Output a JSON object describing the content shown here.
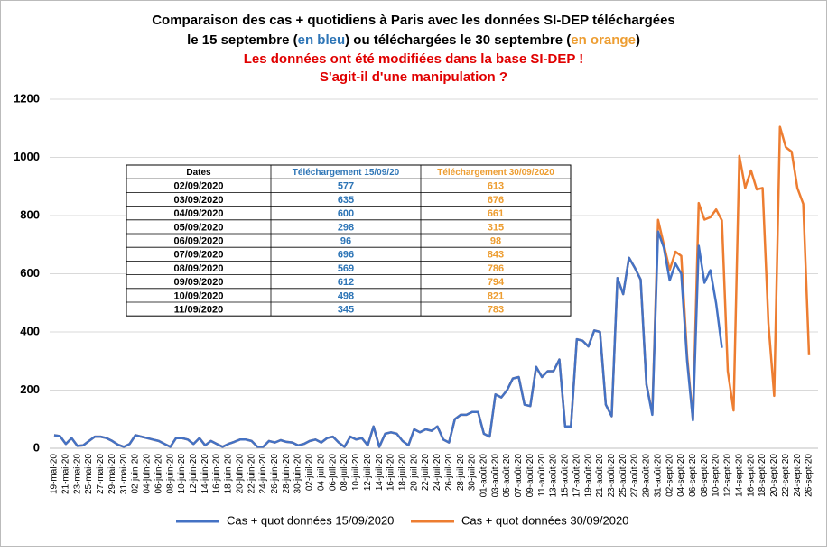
{
  "chart_data": {
    "type": "line",
    "title_lines": [
      [
        "Comparaison des cas + quotidiens à Paris avec les données SI-DEP téléchargées"
      ],
      [
        "le 15 septembre (",
        "en bleu",
        ") ou téléchargées le 30 septembre (",
        "en orange",
        ")"
      ]
    ],
    "subtitle_lines": [
      "Les données ont été modifiées dans la base SI-DEP !",
      "S'agit-il d'une manipulation ?"
    ],
    "categories": [
      "19-mai-20",
      null,
      "21-mai-20",
      null,
      "23-mai-20",
      null,
      "25-mai-20",
      null,
      "27-mai-20",
      null,
      "29-mai-20",
      null,
      "31-mai-20",
      null,
      "02-juin-20",
      null,
      "04-juin-20",
      null,
      "06-juin-20",
      null,
      "08-juin-20",
      null,
      "10-juin-20",
      null,
      "12-juin-20",
      null,
      "14-juin-20",
      null,
      "16-juin-20",
      null,
      "18-juin-20",
      null,
      "20-juin-20",
      null,
      "22-juin-20",
      null,
      "24-juin-20",
      null,
      "26-juin-20",
      null,
      "28-juin-20",
      null,
      "30-juin-20",
      null,
      "02-juil-20",
      null,
      "04-juil-20",
      null,
      "06-juil-20",
      null,
      "08-juil-20",
      null,
      "10-juil-20",
      null,
      "12-juil-20",
      null,
      "14-juil-20",
      null,
      "16-juil-20",
      null,
      "18-juil-20",
      null,
      "20-juil-20",
      null,
      "22-juil-20",
      null,
      "24-juil-20",
      null,
      "26-juil-20",
      null,
      "28-juil-20",
      null,
      "30-juil-20",
      null,
      "01-août-20",
      null,
      "03-août-20",
      null,
      "05-août-20",
      null,
      "07-août-20",
      null,
      "09-août-20",
      null,
      "11-août-20",
      null,
      "13-août-20",
      null,
      "15-août-20",
      null,
      "17-août-20",
      null,
      "19-août-20",
      null,
      "21-août-20",
      null,
      "23-août-20",
      null,
      "25-août-20",
      null,
      "27-août-20",
      null,
      "29-août-20",
      null,
      "31-août-20",
      null,
      "02-sept-20",
      null,
      "04-sept-20",
      null,
      "06-sept-20",
      null,
      "08-sept-20",
      null,
      "10-sept-20",
      null,
      "12-sept-20",
      null,
      "14-sept-20",
      null,
      "16-sept-20",
      null,
      "18-sept-20",
      null,
      "20-sept-20",
      null,
      "22-sept-20",
      null,
      "24-sept-20",
      null,
      "26-sept-20"
    ],
    "series": [
      {
        "name": "Cas + quot données 15/09/2020",
        "color": "#4472c4",
        "values": [
          45,
          42,
          15,
          35,
          8,
          10,
          25,
          40,
          40,
          35,
          25,
          12,
          5,
          15,
          45,
          40,
          35,
          30,
          25,
          15,
          5,
          35,
          35,
          30,
          15,
          35,
          10,
          25,
          15,
          5,
          15,
          22,
          30,
          30,
          25,
          5,
          5,
          25,
          20,
          28,
          22,
          20,
          10,
          15,
          25,
          30,
          20,
          35,
          40,
          20,
          5,
          40,
          30,
          35,
          10,
          75,
          5,
          50,
          55,
          50,
          25,
          10,
          65,
          55,
          65,
          60,
          75,
          30,
          20,
          100,
          115,
          115,
          125,
          125,
          50,
          40,
          185,
          175,
          200,
          240,
          245,
          150,
          145,
          280,
          245,
          265,
          265,
          305,
          75,
          75,
          375,
          370,
          350,
          405,
          400,
          150,
          110,
          585,
          530,
          655,
          620,
          580,
          220,
          115,
          745,
          690,
          577,
          635,
          600,
          298,
          96,
          696,
          569,
          612,
          498,
          345,
          null,
          null,
          null,
          null,
          null,
          null,
          null,
          null,
          null,
          null,
          null,
          null,
          null,
          null,
          null
        ]
      },
      {
        "name": "Cas + quot données 30/09/2020",
        "color": "#ed7d31",
        "values": [
          45,
          42,
          15,
          35,
          8,
          10,
          25,
          40,
          40,
          35,
          25,
          12,
          5,
          15,
          45,
          40,
          35,
          30,
          25,
          15,
          5,
          35,
          35,
          30,
          15,
          35,
          10,
          25,
          15,
          5,
          15,
          22,
          30,
          30,
          25,
          5,
          5,
          25,
          20,
          28,
          22,
          20,
          10,
          15,
          25,
          30,
          20,
          35,
          40,
          20,
          5,
          40,
          30,
          35,
          10,
          75,
          5,
          50,
          55,
          50,
          25,
          10,
          65,
          55,
          65,
          60,
          75,
          30,
          20,
          100,
          115,
          115,
          125,
          125,
          50,
          40,
          185,
          175,
          200,
          240,
          245,
          150,
          145,
          280,
          245,
          265,
          265,
          305,
          75,
          75,
          375,
          370,
          350,
          405,
          400,
          150,
          110,
          585,
          530,
          655,
          620,
          580,
          220,
          120,
          785,
          700,
          613,
          676,
          661,
          315,
          98,
          843,
          786,
          794,
          821,
          783,
          265,
          130,
          1005,
          895,
          955,
          890,
          895,
          430,
          180,
          1105,
          1035,
          1020,
          895,
          840,
          320
        ]
      }
    ],
    "ylim": [
      0,
      1200
    ],
    "yticks": [
      0,
      200,
      400,
      600,
      800,
      1000,
      1200
    ],
    "grid": true,
    "table": {
      "header": [
        "Dates",
        "Téléchargement 15/09/20",
        "Téléchargement 30/09/2020"
      ],
      "rows": [
        [
          "02/09/2020",
          577,
          613
        ],
        [
          "03/09/2020",
          635,
          676
        ],
        [
          "04/09/2020",
          600,
          661
        ],
        [
          "05/09/2020",
          298,
          315
        ],
        [
          "06/09/2020",
          96,
          98
        ],
        [
          "07/09/2020",
          696,
          843
        ],
        [
          "08/09/2020",
          569,
          786
        ],
        [
          "09/09/2020",
          612,
          794
        ],
        [
          "10/09/2020",
          498,
          821
        ],
        [
          "11/09/2020",
          345,
          783
        ]
      ]
    }
  }
}
